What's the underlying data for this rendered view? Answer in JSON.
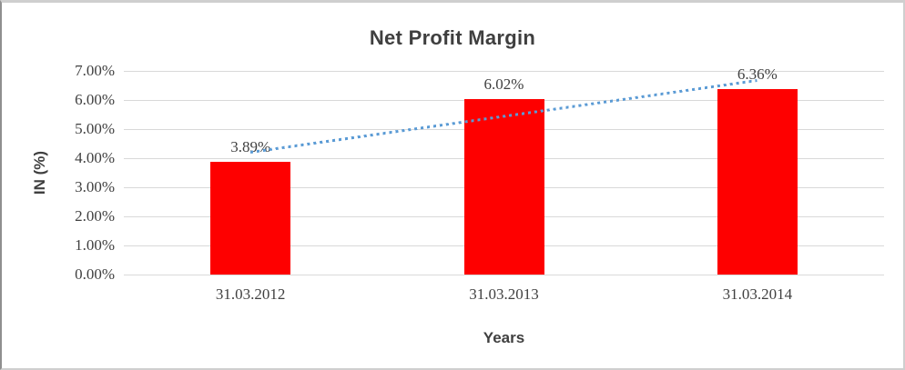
{
  "chart_data": {
    "type": "bar",
    "title": "Net Profit Margin",
    "categories": [
      "31.03.2012",
      "31.03.2013",
      "31.03.2014"
    ],
    "values": [
      3.89,
      6.02,
      6.36
    ],
    "data_labels": [
      "3.89%",
      "6.02%",
      "6.36%"
    ],
    "xlabel": "Years",
    "ylabel": "IN (%)",
    "ylim": [
      0,
      7
    ],
    "ytick_step": 1,
    "ytick_labels": [
      "0.00%",
      "1.00%",
      "2.00%",
      "3.00%",
      "4.00%",
      "5.00%",
      "6.00%",
      "7.00%"
    ],
    "grid": true,
    "legend": "none",
    "trendline": {
      "kind": "linear",
      "style": "dotted"
    }
  },
  "colors": {
    "bar": "#fe0000",
    "trendline": "#5b9bd5",
    "gridline": "#d9d9d9",
    "text": "#404040",
    "title_text": "#3f3f3f"
  }
}
